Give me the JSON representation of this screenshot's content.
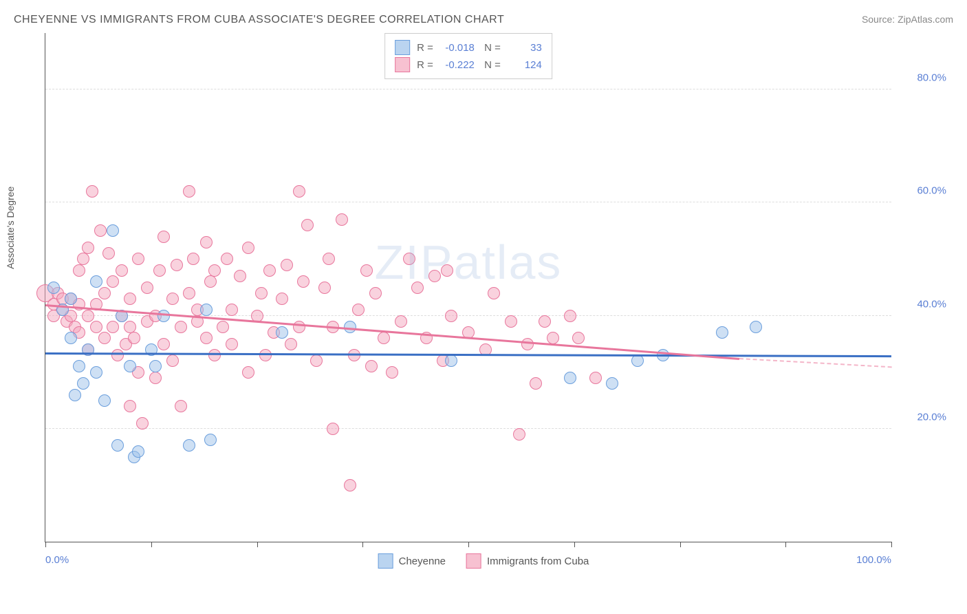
{
  "title": "CHEYENNE VS IMMIGRANTS FROM CUBA ASSOCIATE'S DEGREE CORRELATION CHART",
  "source": "Source: ZipAtlas.com",
  "watermark_bold": "ZIP",
  "watermark_rest": "atlas",
  "chart": {
    "type": "scatter",
    "y_label": "Associate's Degree",
    "y_ticks": [
      20.0,
      40.0,
      60.0,
      80.0
    ],
    "y_tick_labels": [
      "20.0%",
      "40.0%",
      "60.0%",
      "80.0%"
    ],
    "ylim": [
      0,
      90
    ],
    "x_ticks": [
      0,
      12.5,
      25,
      37.5,
      50,
      62.5,
      75,
      87.5,
      100
    ],
    "x_tick_labels_shown": {
      "0": "0.0%",
      "100": "100.0%"
    },
    "xlim": [
      0,
      100
    ],
    "grid_color": "#dddddd",
    "axis_color": "#555555",
    "background_color": "#ffffff",
    "marker_radius": 9,
    "big_marker_radius": 13,
    "series": {
      "blue": {
        "label": "Cheyenne",
        "fill": "rgba(157,194,234,0.5)",
        "stroke": "#6a9edc",
        "R": "-0.018",
        "N": "33",
        "trend": {
          "x1": 0,
          "y1": 33.5,
          "x2": 100,
          "y2": 33.0,
          "color": "#3a6fc4"
        },
        "points": [
          [
            1,
            45
          ],
          [
            2,
            41
          ],
          [
            3,
            43
          ],
          [
            3,
            36
          ],
          [
            3.5,
            26
          ],
          [
            4,
            31
          ],
          [
            4.5,
            28
          ],
          [
            5,
            34
          ],
          [
            6,
            46
          ],
          [
            6,
            30
          ],
          [
            7,
            25
          ],
          [
            8,
            55
          ],
          [
            8.5,
            17
          ],
          [
            9,
            40
          ],
          [
            10,
            31
          ],
          [
            10.5,
            15
          ],
          [
            11,
            16
          ],
          [
            12.5,
            34
          ],
          [
            13,
            31
          ],
          [
            14,
            40
          ],
          [
            17,
            17
          ],
          [
            19,
            41
          ],
          [
            19.5,
            18
          ],
          [
            28,
            37
          ],
          [
            36,
            38
          ],
          [
            48,
            32
          ],
          [
            62,
            29
          ],
          [
            67,
            28
          ],
          [
            70,
            32
          ],
          [
            73,
            33
          ],
          [
            80,
            37
          ],
          [
            84,
            38
          ]
        ]
      },
      "pink": {
        "label": "Immigrants from Cuba",
        "fill": "rgba(244,166,189,0.5)",
        "stroke": "#e8769c",
        "R": "-0.222",
        "N": "124",
        "trend": {
          "x1": 0,
          "y1": 42.0,
          "x2": 82,
          "y2": 32.5,
          "dash_to_x": 100,
          "dash_to_y": 31.0,
          "color": "#e8769c"
        },
        "big_points": [
          [
            0,
            44
          ]
        ],
        "points": [
          [
            1,
            40
          ],
          [
            1,
            42
          ],
          [
            1.5,
            44
          ],
          [
            2,
            43
          ],
          [
            2,
            41
          ],
          [
            2.5,
            39
          ],
          [
            3,
            43
          ],
          [
            3,
            40
          ],
          [
            3.5,
            38
          ],
          [
            4,
            48
          ],
          [
            4,
            42
          ],
          [
            4,
            37
          ],
          [
            4.5,
            50
          ],
          [
            5,
            34
          ],
          [
            5,
            40
          ],
          [
            5,
            52
          ],
          [
            5.5,
            62
          ],
          [
            6,
            38
          ],
          [
            6,
            42
          ],
          [
            6.5,
            55
          ],
          [
            7,
            36
          ],
          [
            7,
            44
          ],
          [
            7.5,
            51
          ],
          [
            8,
            38
          ],
          [
            8,
            46
          ],
          [
            8.5,
            33
          ],
          [
            9,
            40
          ],
          [
            9,
            48
          ],
          [
            9.5,
            35
          ],
          [
            10,
            24
          ],
          [
            10,
            38
          ],
          [
            10,
            43
          ],
          [
            10.5,
            36
          ],
          [
            11,
            50
          ],
          [
            11,
            30
          ],
          [
            11.5,
            21
          ],
          [
            12,
            39
          ],
          [
            12,
            45
          ],
          [
            13,
            29
          ],
          [
            13,
            40
          ],
          [
            13.5,
            48
          ],
          [
            14,
            54
          ],
          [
            14,
            35
          ],
          [
            15,
            32
          ],
          [
            15,
            43
          ],
          [
            15.5,
            49
          ],
          [
            16,
            24
          ],
          [
            16,
            38
          ],
          [
            17,
            62
          ],
          [
            17,
            44
          ],
          [
            17.5,
            50
          ],
          [
            18,
            39
          ],
          [
            18,
            41
          ],
          [
            19,
            36
          ],
          [
            19,
            53
          ],
          [
            19.5,
            46
          ],
          [
            20,
            33
          ],
          [
            20,
            48
          ],
          [
            21,
            38
          ],
          [
            21.5,
            50
          ],
          [
            22,
            41
          ],
          [
            22,
            35
          ],
          [
            23,
            47
          ],
          [
            24,
            30
          ],
          [
            24,
            52
          ],
          [
            25,
            40
          ],
          [
            25.5,
            44
          ],
          [
            26,
            33
          ],
          [
            26.5,
            48
          ],
          [
            27,
            37
          ],
          [
            28,
            43
          ],
          [
            28.5,
            49
          ],
          [
            29,
            35
          ],
          [
            30,
            62
          ],
          [
            30,
            38
          ],
          [
            30.5,
            46
          ],
          [
            31,
            56
          ],
          [
            32,
            32
          ],
          [
            33,
            45
          ],
          [
            33.5,
            50
          ],
          [
            34,
            20
          ],
          [
            34,
            38
          ],
          [
            35,
            57
          ],
          [
            36,
            10
          ],
          [
            36.5,
            33
          ],
          [
            37,
            41
          ],
          [
            38,
            48
          ],
          [
            38.5,
            31
          ],
          [
            39,
            44
          ],
          [
            40,
            36
          ],
          [
            41,
            30
          ],
          [
            42,
            39
          ],
          [
            43,
            50
          ],
          [
            44,
            45
          ],
          [
            45,
            36
          ],
          [
            46,
            47
          ],
          [
            47,
            32
          ],
          [
            47.5,
            48
          ],
          [
            48,
            40
          ],
          [
            50,
            37
          ],
          [
            52,
            34
          ],
          [
            53,
            44
          ],
          [
            55,
            39
          ],
          [
            56,
            19
          ],
          [
            57,
            35
          ],
          [
            58,
            28
          ],
          [
            59,
            39
          ],
          [
            60,
            36
          ],
          [
            62,
            40
          ],
          [
            63,
            36
          ],
          [
            65,
            29
          ]
        ]
      }
    }
  }
}
